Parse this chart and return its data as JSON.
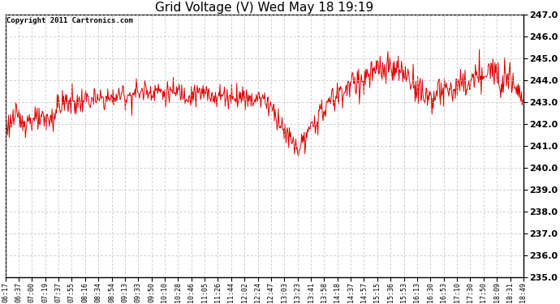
{
  "title": "Grid Voltage (V) Wed May 18 19:19",
  "copyright_text": "Copyright 2011 Cartronics.com",
  "line_color": "#dd0000",
  "bg_color": "#ffffff",
  "plot_bg_color": "#ffffff",
  "grid_color": "#bbbbbb",
  "ylim": [
    235.0,
    247.0
  ],
  "ytick_values": [
    235.0,
    236.0,
    237.0,
    238.0,
    239.0,
    240.0,
    241.0,
    242.0,
    243.0,
    244.0,
    245.0,
    246.0,
    247.0
  ],
  "xtick_labels": [
    "06:17",
    "06:37",
    "07:00",
    "07:19",
    "07:37",
    "07:55",
    "08:16",
    "08:34",
    "08:54",
    "09:13",
    "09:33",
    "09:50",
    "10:10",
    "10:28",
    "10:46",
    "11:05",
    "11:26",
    "11:44",
    "12:02",
    "12:24",
    "12:47",
    "13:03",
    "13:23",
    "13:41",
    "13:58",
    "14:18",
    "14:37",
    "14:57",
    "15:15",
    "15:36",
    "15:53",
    "16:13",
    "16:30",
    "16:53",
    "17:10",
    "17:30",
    "17:50",
    "18:09",
    "18:31",
    "18:49"
  ],
  "title_fontsize": 11,
  "copyright_fontsize": 6.5,
  "ytick_fontsize": 8,
  "xtick_fontsize": 6,
  "line_width": 0.7
}
